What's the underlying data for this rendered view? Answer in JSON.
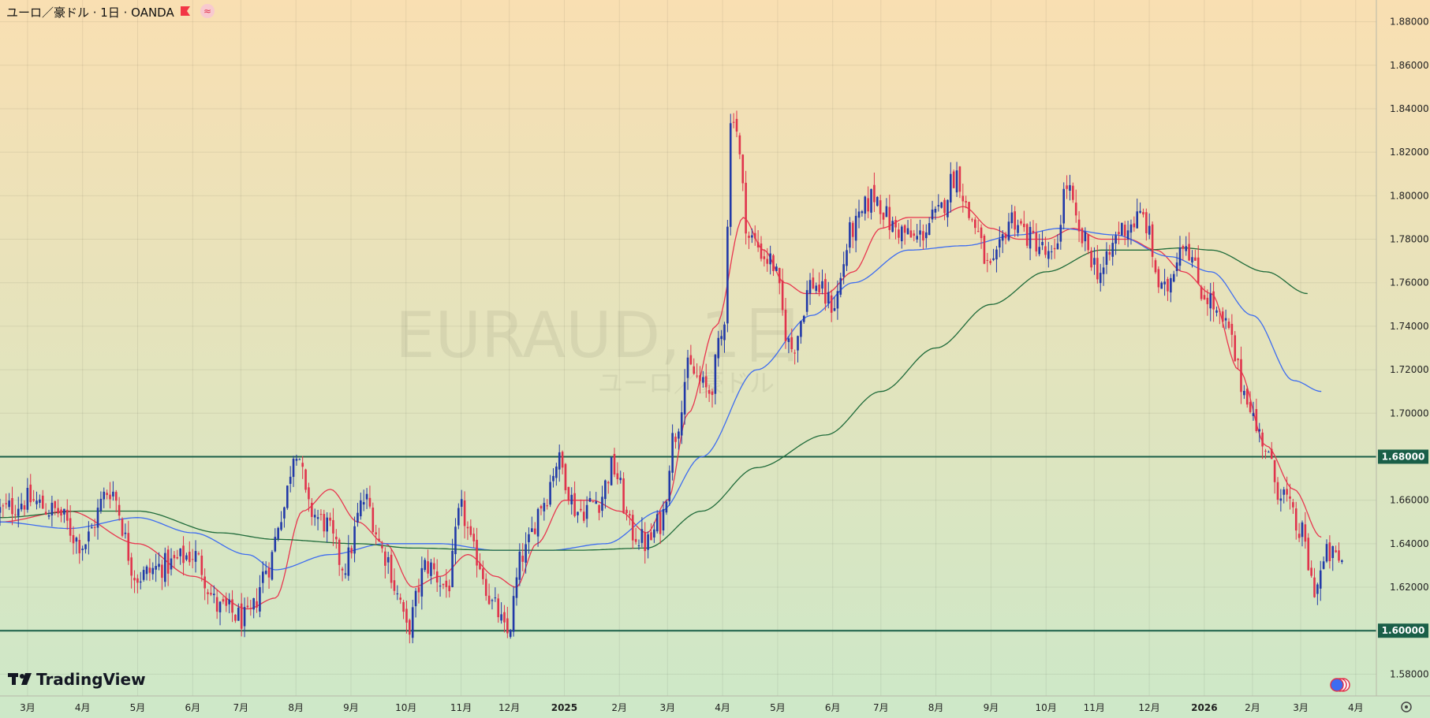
{
  "header": {
    "title": "ユーロ／豪ドル · 1日 · OANDA",
    "flag_color": "#f23645",
    "indicator_icon": "approx-icon"
  },
  "watermark": {
    "symbol": "EURAUD, 1日",
    "name": "ユーロ／豪ドル"
  },
  "brand": {
    "name": "TradingView",
    "logo_icon": "tv-logo-icon"
  },
  "colors": {
    "bg_top": "#f9dfb2",
    "bg_bottom": "#cde8c8",
    "candle_up": "#2139a8",
    "candle_down": "#e0334c",
    "sma_short": "#e8364f",
    "sma_mid": "#3d6cf0",
    "sma_long": "#1f6b3a",
    "hline": "#1a5f48"
  },
  "chart_data": {
    "type": "candlestick",
    "symbol": "EURAUD",
    "timeframe": "1日",
    "ylim": [
      1.57,
      1.89
    ],
    "y_ticks": [
      "1.88000",
      "1.86000",
      "1.84000",
      "1.82000",
      "1.80000",
      "1.78000",
      "1.76000",
      "1.74000",
      "1.72000",
      "1.70000",
      "1.68000",
      "1.66000",
      "1.64000",
      "1.62000",
      "1.60000",
      "1.58000"
    ],
    "x_ticks": [
      {
        "label": "3月",
        "t": 0.02
      },
      {
        "label": "4月",
        "t": 0.06
      },
      {
        "label": "5月",
        "t": 0.1
      },
      {
        "label": "6月",
        "t": 0.14
      },
      {
        "label": "7月",
        "t": 0.175
      },
      {
        "label": "8月",
        "t": 0.215
      },
      {
        "label": "9月",
        "t": 0.255
      },
      {
        "label": "10月",
        "t": 0.295
      },
      {
        "label": "11月",
        "t": 0.335
      },
      {
        "label": "12月",
        "t": 0.37
      },
      {
        "label": "2025",
        "t": 0.41,
        "bold": true
      },
      {
        "label": "2月",
        "t": 0.45
      },
      {
        "label": "3月",
        "t": 0.485
      },
      {
        "label": "4月",
        "t": 0.525
      },
      {
        "label": "5月",
        "t": 0.565
      },
      {
        "label": "6月",
        "t": 0.605
      },
      {
        "label": "7月",
        "t": 0.64
      },
      {
        "label": "8月",
        "t": 0.68
      },
      {
        "label": "9月",
        "t": 0.72
      },
      {
        "label": "10月",
        "t": 0.76
      },
      {
        "label": "11月",
        "t": 0.795
      },
      {
        "label": "12月",
        "t": 0.835
      },
      {
        "label": "2026",
        "t": 0.875,
        "bold": true
      },
      {
        "label": "2月",
        "t": 0.91
      },
      {
        "label": "3月",
        "t": 0.945
      },
      {
        "label": "4月",
        "t": 0.985
      }
    ],
    "horizontal_lines": [
      {
        "value": 1.68,
        "label": "1.68000"
      },
      {
        "value": 1.6,
        "label": "1.60000"
      }
    ],
    "close_anchors": [
      [
        0.0,
        1.655
      ],
      [
        0.02,
        1.66
      ],
      [
        0.04,
        1.655
      ],
      [
        0.06,
        1.64
      ],
      [
        0.08,
        1.665
      ],
      [
        0.1,
        1.625
      ],
      [
        0.12,
        1.63
      ],
      [
        0.14,
        1.635
      ],
      [
        0.16,
        1.61
      ],
      [
        0.18,
        1.605
      ],
      [
        0.195,
        1.63
      ],
      [
        0.205,
        1.655
      ],
      [
        0.215,
        1.685
      ],
      [
        0.225,
        1.655
      ],
      [
        0.235,
        1.65
      ],
      [
        0.25,
        1.63
      ],
      [
        0.265,
        1.66
      ],
      [
        0.28,
        1.635
      ],
      [
        0.29,
        1.615
      ],
      [
        0.295,
        1.6
      ],
      [
        0.31,
        1.63
      ],
      [
        0.325,
        1.62
      ],
      [
        0.335,
        1.655
      ],
      [
        0.345,
        1.635
      ],
      [
        0.36,
        1.61
      ],
      [
        0.368,
        1.598
      ],
      [
        0.38,
        1.635
      ],
      [
        0.395,
        1.66
      ],
      [
        0.405,
        1.678
      ],
      [
        0.42,
        1.655
      ],
      [
        0.435,
        1.66
      ],
      [
        0.445,
        1.675
      ],
      [
        0.46,
        1.645
      ],
      [
        0.47,
        1.64
      ],
      [
        0.48,
        1.65
      ],
      [
        0.49,
        1.69
      ],
      [
        0.5,
        1.72
      ],
      [
        0.515,
        1.71
      ],
      [
        0.525,
        1.735
      ],
      [
        0.532,
        1.84
      ],
      [
        0.545,
        1.78
      ],
      [
        0.56,
        1.77
      ],
      [
        0.575,
        1.73
      ],
      [
        0.59,
        1.76
      ],
      [
        0.605,
        1.75
      ],
      [
        0.62,
        1.785
      ],
      [
        0.635,
        1.8
      ],
      [
        0.65,
        1.785
      ],
      [
        0.665,
        1.78
      ],
      [
        0.68,
        1.79
      ],
      [
        0.695,
        1.81
      ],
      [
        0.705,
        1.79
      ],
      [
        0.72,
        1.765
      ],
      [
        0.735,
        1.79
      ],
      [
        0.75,
        1.78
      ],
      [
        0.765,
        1.77
      ],
      [
        0.775,
        1.805
      ],
      [
        0.785,
        1.78
      ],
      [
        0.8,
        1.765
      ],
      [
        0.815,
        1.785
      ],
      [
        0.83,
        1.79
      ],
      [
        0.845,
        1.755
      ],
      [
        0.86,
        1.78
      ],
      [
        0.875,
        1.755
      ],
      [
        0.89,
        1.74
      ],
      [
        0.905,
        1.71
      ],
      [
        0.915,
        1.69
      ],
      [
        0.93,
        1.665
      ],
      [
        0.945,
        1.645
      ],
      [
        0.955,
        1.62
      ],
      [
        0.965,
        1.635
      ],
      [
        0.975,
        1.632
      ]
    ],
    "sma_short_anchors": [
      [
        0.0,
        1.65
      ],
      [
        0.05,
        1.655
      ],
      [
        0.1,
        1.64
      ],
      [
        0.14,
        1.625
      ],
      [
        0.18,
        1.61
      ],
      [
        0.2,
        1.615
      ],
      [
        0.22,
        1.655
      ],
      [
        0.24,
        1.665
      ],
      [
        0.26,
        1.65
      ],
      [
        0.28,
        1.64
      ],
      [
        0.3,
        1.62
      ],
      [
        0.32,
        1.625
      ],
      [
        0.34,
        1.635
      ],
      [
        0.36,
        1.625
      ],
      [
        0.375,
        1.62
      ],
      [
        0.39,
        1.64
      ],
      [
        0.41,
        1.66
      ],
      [
        0.43,
        1.66
      ],
      [
        0.45,
        1.655
      ],
      [
        0.47,
        1.645
      ],
      [
        0.485,
        1.66
      ],
      [
        0.5,
        1.7
      ],
      [
        0.52,
        1.74
      ],
      [
        0.54,
        1.79
      ],
      [
        0.555,
        1.775
      ],
      [
        0.57,
        1.76
      ],
      [
        0.585,
        1.755
      ],
      [
        0.6,
        1.755
      ],
      [
        0.62,
        1.765
      ],
      [
        0.64,
        1.785
      ],
      [
        0.66,
        1.79
      ],
      [
        0.68,
        1.79
      ],
      [
        0.7,
        1.795
      ],
      [
        0.72,
        1.785
      ],
      [
        0.74,
        1.78
      ],
      [
        0.76,
        1.78
      ],
      [
        0.78,
        1.785
      ],
      [
        0.8,
        1.78
      ],
      [
        0.82,
        1.78
      ],
      [
        0.84,
        1.775
      ],
      [
        0.86,
        1.765
      ],
      [
        0.88,
        1.755
      ],
      [
        0.9,
        1.72
      ],
      [
        0.92,
        1.685
      ],
      [
        0.94,
        1.665
      ],
      [
        0.96,
        1.643
      ]
    ],
    "sma_mid_anchors": [
      [
        0.0,
        1.65
      ],
      [
        0.05,
        1.647
      ],
      [
        0.1,
        1.652
      ],
      [
        0.14,
        1.645
      ],
      [
        0.18,
        1.635
      ],
      [
        0.2,
        1.628
      ],
      [
        0.24,
        1.635
      ],
      [
        0.28,
        1.64
      ],
      [
        0.32,
        1.64
      ],
      [
        0.36,
        1.637
      ],
      [
        0.4,
        1.637
      ],
      [
        0.44,
        1.64
      ],
      [
        0.48,
        1.655
      ],
      [
        0.51,
        1.68
      ],
      [
        0.55,
        1.72
      ],
      [
        0.59,
        1.745
      ],
      [
        0.62,
        1.76
      ],
      [
        0.66,
        1.775
      ],
      [
        0.7,
        1.777
      ],
      [
        0.74,
        1.782
      ],
      [
        0.77,
        1.785
      ],
      [
        0.81,
        1.782
      ],
      [
        0.85,
        1.772
      ],
      [
        0.88,
        1.765
      ],
      [
        0.91,
        1.745
      ],
      [
        0.94,
        1.715
      ],
      [
        0.96,
        1.71
      ]
    ],
    "sma_long_anchors": [
      [
        0.0,
        1.652
      ],
      [
        0.06,
        1.655
      ],
      [
        0.1,
        1.655
      ],
      [
        0.16,
        1.645
      ],
      [
        0.2,
        1.642
      ],
      [
        0.26,
        1.64
      ],
      [
        0.3,
        1.638
      ],
      [
        0.36,
        1.637
      ],
      [
        0.42,
        1.637
      ],
      [
        0.47,
        1.638
      ],
      [
        0.51,
        1.655
      ],
      [
        0.55,
        1.675
      ],
      [
        0.6,
        1.69
      ],
      [
        0.64,
        1.71
      ],
      [
        0.68,
        1.73
      ],
      [
        0.72,
        1.75
      ],
      [
        0.76,
        1.765
      ],
      [
        0.8,
        1.775
      ],
      [
        0.83,
        1.775
      ],
      [
        0.86,
        1.776
      ],
      [
        0.88,
        1.775
      ],
      [
        0.92,
        1.765
      ],
      [
        0.95,
        1.755
      ]
    ]
  }
}
